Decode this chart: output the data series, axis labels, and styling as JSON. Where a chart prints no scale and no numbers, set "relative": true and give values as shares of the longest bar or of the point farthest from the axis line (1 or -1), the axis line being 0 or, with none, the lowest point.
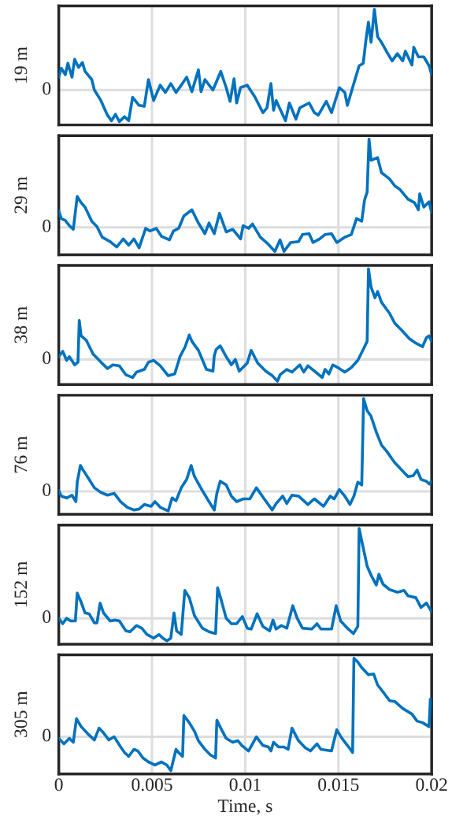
{
  "chart_data": [
    {
      "type": "line",
      "ylabel": "19 m",
      "relative": true,
      "color": "#0072bd",
      "xlim": [
        0,
        0.02
      ],
      "xticks": [
        0,
        0.005,
        0.01,
        0.015,
        0.02
      ],
      "ref_lines": [
        {
          "axis": "y",
          "value": 0,
          "label": "0",
          "color": "#dddddd"
        }
      ],
      "grid": "x",
      "tick_labels": "y",
      "x": [
        0,
        0.00014,
        0.00035,
        0.00049,
        0.00071,
        0.00085,
        0.00106,
        0.00127,
        0.00141,
        0.00177,
        0.00191,
        0.00226,
        0.00261,
        0.00283,
        0.00304,
        0.00325,
        0.00353,
        0.00375,
        0.00396,
        0.00431,
        0.00459,
        0.00481,
        0.00509,
        0.00544,
        0.00572,
        0.00601,
        0.00629,
        0.00657,
        0.00686,
        0.00714,
        0.00749,
        0.00763,
        0.00784,
        0.00827,
        0.00869,
        0.00898,
        0.00919,
        0.0094,
        0.00954,
        0.00975,
        0.01011,
        0.01053,
        0.01095,
        0.01117,
        0.01138,
        0.01152,
        0.01166,
        0.01216,
        0.01237,
        0.01272,
        0.01293,
        0.01343,
        0.01371,
        0.01392,
        0.01435,
        0.01463,
        0.01505,
        0.01534,
        0.01548,
        0.01576,
        0.01611,
        0.01633,
        0.01647,
        0.01661,
        0.01675,
        0.01693,
        0.0171,
        0.01731,
        0.0176,
        0.01788,
        0.01816,
        0.01845,
        0.01859,
        0.01894,
        0.01904,
        0.01929,
        0.01958,
        0.01986,
        0.02
      ],
      "values": [
        0.16,
        0.27,
        0.19,
        0.33,
        0.16,
        0.38,
        0.28,
        0.34,
        0.23,
        0.13,
        0,
        -0.13,
        -0.31,
        -0.38,
        -0.3,
        -0.39,
        -0.33,
        -0.38,
        -0.09,
        -0.19,
        -0.2,
        0.13,
        -0.13,
        0.06,
        -0.03,
        0.08,
        -0.03,
        0.06,
        0.16,
        -0.02,
        0.25,
        -0.02,
        0.13,
        0,
        0.23,
        0.03,
        -0.14,
        0.14,
        -0.16,
        0.03,
        0.06,
        -0.09,
        -0.28,
        -0.22,
        0.08,
        -0.25,
        -0.13,
        -0.38,
        -0.16,
        -0.36,
        -0.22,
        -0.16,
        -0.28,
        -0.31,
        -0.14,
        -0.28,
        0.03,
        -0.03,
        -0.19,
        0.03,
        0.3,
        0.33,
        0.61,
        0.84,
        0.59,
        1,
        0.66,
        0.59,
        0.47,
        0.36,
        0.45,
        0.36,
        0.48,
        0.31,
        0.53,
        0.41,
        0.41,
        0.3,
        0.19
      ]
    },
    {
      "type": "line",
      "ylabel": "29 m",
      "relative": true,
      "color": "#0072bd",
      "xlim": [
        0,
        0.02
      ],
      "xticks": [
        0,
        0.005,
        0.01,
        0.015,
        0.02
      ],
      "ref_lines": [
        {
          "axis": "y",
          "value": 0,
          "label": "0",
          "color": "#dddddd"
        }
      ],
      "grid": "x",
      "tick_labels": "y",
      "x": [
        0,
        0.00014,
        0.00035,
        0.00057,
        0.00078,
        0.00099,
        0.0012,
        0.00141,
        0.00177,
        0.00205,
        0.00233,
        0.00276,
        0.00311,
        0.00346,
        0.00375,
        0.00403,
        0.00431,
        0.00466,
        0.00488,
        0.00523,
        0.00551,
        0.00594,
        0.00615,
        0.00643,
        0.00671,
        0.00714,
        0.00749,
        0.00784,
        0.00806,
        0.00834,
        0.00862,
        0.00898,
        0.00933,
        0.00975,
        0.00989,
        0.01018,
        0.01039,
        0.01081,
        0.01124,
        0.01159,
        0.01187,
        0.01208,
        0.01244,
        0.01286,
        0.01307,
        0.01343,
        0.01364,
        0.01399,
        0.01428,
        0.01463,
        0.01491,
        0.01534,
        0.01569,
        0.01597,
        0.01625,
        0.0164,
        0.01654,
        0.01664,
        0.01675,
        0.0171,
        0.01731,
        0.01774,
        0.01802,
        0.0183,
        0.01873,
        0.01908,
        0.01929,
        0.01936,
        0.01958,
        0.01986,
        0.02
      ],
      "values": [
        0.19,
        0.1,
        0.08,
        0.02,
        -0.02,
        0.35,
        0.28,
        0.23,
        0.07,
        0.01,
        -0.11,
        -0.16,
        -0.22,
        -0.13,
        -0.2,
        -0.13,
        -0.23,
        -0.01,
        -0.04,
        -0.01,
        -0.1,
        -0.14,
        -0.04,
        -0.01,
        0.13,
        0.2,
        0.05,
        -0.07,
        0.05,
        -0.07,
        0.16,
        -0.05,
        -0.02,
        -0.13,
        0.02,
        -0.01,
        0.04,
        -0.11,
        -0.19,
        -0.27,
        -0.14,
        -0.27,
        -0.17,
        -0.16,
        -0.08,
        -0.07,
        -0.17,
        -0.13,
        -0.08,
        -0.07,
        -0.17,
        -0.11,
        -0.08,
        0.1,
        0.07,
        0.31,
        0.4,
        1,
        0.76,
        0.79,
        0.62,
        0.55,
        0.47,
        0.43,
        0.32,
        0.28,
        0.2,
        0.38,
        0.23,
        0.29,
        0.17
      ]
    },
    {
      "type": "line",
      "ylabel": "38 m",
      "relative": true,
      "color": "#0072bd",
      "xlim": [
        0,
        0.02
      ],
      "xticks": [
        0,
        0.005,
        0.01,
        0.015,
        0.02
      ],
      "ref_lines": [
        {
          "axis": "y",
          "value": 0,
          "label": "0",
          "color": "#dddddd"
        }
      ],
      "grid": "x",
      "tick_labels": "y",
      "x": [
        0,
        0.00021,
        0.00042,
        0.00057,
        0.00085,
        0.00103,
        0.0011,
        0.0012,
        0.00148,
        0.00184,
        0.00226,
        0.00261,
        0.0029,
        0.00325,
        0.0036,
        0.00396,
        0.00417,
        0.00459,
        0.00481,
        0.00509,
        0.00544,
        0.00587,
        0.00622,
        0.0065,
        0.00678,
        0.007,
        0.00714,
        0.00749,
        0.00792,
        0.00827,
        0.00834,
        0.00844,
        0.00866,
        0.00898,
        0.00926,
        0.00947,
        0.00968,
        0.01011,
        0.01032,
        0.01067,
        0.0111,
        0.01145,
        0.01173,
        0.01187,
        0.01223,
        0.01251,
        0.01293,
        0.01314,
        0.01336,
        0.01378,
        0.01413,
        0.01428,
        0.01449,
        0.0147,
        0.01505,
        0.01534,
        0.01569,
        0.01604,
        0.01633,
        0.01654,
        0.01661,
        0.01675,
        0.01696,
        0.0171,
        0.01731,
        0.01774,
        0.01802,
        0.01845,
        0.0188,
        0.01915,
        0.01951,
        0.01972,
        0.01986,
        0.02
      ],
      "values": [
        0.03,
        0.09,
        -0.01,
        0.03,
        -0.06,
        -0.03,
        0.43,
        0.26,
        0.21,
        0.06,
        -0.03,
        -0.1,
        -0.06,
        -0.07,
        -0.17,
        -0.2,
        -0.14,
        -0.11,
        -0.03,
        -0.01,
        -0.07,
        -0.18,
        -0.16,
        0.03,
        0.14,
        0.27,
        0.2,
        0.1,
        -0.11,
        -0.13,
        0.04,
        0.11,
        0.15,
        0.03,
        -0.06,
        0,
        -0.13,
        -0.04,
        0.1,
        -0.04,
        -0.13,
        -0.18,
        -0.24,
        -0.17,
        -0.11,
        -0.14,
        -0.06,
        -0.14,
        -0.07,
        -0.14,
        -0.2,
        -0.11,
        -0.16,
        -0.06,
        -0.1,
        -0.14,
        -0.09,
        -0.01,
        0.11,
        0.2,
        1,
        0.8,
        0.68,
        0.75,
        0.63,
        0.51,
        0.4,
        0.31,
        0.23,
        0.18,
        0.14,
        0.24,
        0.26,
        0.2
      ]
    },
    {
      "type": "line",
      "ylabel": "76 m",
      "relative": true,
      "color": "#0072bd",
      "xlim": [
        0,
        0.02
      ],
      "xticks": [
        0,
        0.005,
        0.01,
        0.015,
        0.02
      ],
      "ref_lines": [
        {
          "axis": "y",
          "value": 0,
          "label": "0",
          "color": "#dddddd"
        }
      ],
      "grid": "x",
      "tick_labels": "y",
      "x": [
        0,
        0.00014,
        0.00042,
        0.00071,
        0.00092,
        0.00099,
        0.00116,
        0.00134,
        0.00163,
        0.00191,
        0.00226,
        0.00261,
        0.00297,
        0.00332,
        0.00367,
        0.00403,
        0.00431,
        0.00459,
        0.00495,
        0.00516,
        0.00544,
        0.00587,
        0.00608,
        0.00629,
        0.00657,
        0.00686,
        0.0071,
        0.00728,
        0.0077,
        0.00806,
        0.00834,
        0.00848,
        0.00866,
        0.00898,
        0.00926,
        0.00954,
        0.00989,
        0.01025,
        0.0106,
        0.01102,
        0.01145,
        0.01166,
        0.01201,
        0.01223,
        0.01251,
        0.01286,
        0.01336,
        0.01371,
        0.0142,
        0.01456,
        0.01477,
        0.01505,
        0.01534,
        0.01562,
        0.01583,
        0.01604,
        0.01625,
        0.01635,
        0.01654,
        0.01675,
        0.01703,
        0.01731,
        0.0176,
        0.01802,
        0.01845,
        0.01873,
        0.01901,
        0.01922,
        0.01943,
        0.01972,
        0.01986,
        0.02
      ],
      "values": [
        0.01,
        -0.05,
        -0.07,
        -0.04,
        -0.11,
        0.1,
        0.28,
        0.22,
        0.13,
        0.04,
        -0.01,
        -0.04,
        -0.02,
        -0.11,
        -0.17,
        -0.2,
        -0.19,
        -0.14,
        -0.16,
        -0.11,
        -0.17,
        -0.21,
        -0.07,
        -0.1,
        0.04,
        0.13,
        0.28,
        0.16,
        0.01,
        -0.11,
        -0.2,
        -0.02,
        0.11,
        0.07,
        -0.05,
        -0.11,
        -0.08,
        -0.08,
        0.04,
        -0.08,
        -0.2,
        -0.13,
        -0.05,
        -0.13,
        -0.04,
        -0.05,
        -0.14,
        -0.08,
        -0.16,
        -0.05,
        -0.08,
        0.02,
        -0.05,
        -0.14,
        -0.05,
        0.1,
        0.07,
        1,
        0.87,
        0.81,
        0.64,
        0.5,
        0.43,
        0.31,
        0.22,
        0.16,
        0.17,
        0.23,
        0.13,
        0.11,
        0.08,
        0.11
      ]
    },
    {
      "type": "line",
      "ylabel": "152 m",
      "relative": true,
      "color": "#0072bd",
      "xlim": [
        0,
        0.02
      ],
      "xticks": [
        0,
        0.005,
        0.01,
        0.015,
        0.02
      ],
      "ref_lines": [
        {
          "axis": "y",
          "value": 0,
          "label": "0",
          "color": "#dddddd"
        }
      ],
      "grid": "x",
      "tick_labels": "y",
      "x": [
        0,
        0.00021,
        0.00042,
        0.00064,
        0.00089,
        0.00099,
        0.0012,
        0.00141,
        0.00163,
        0.00191,
        0.00205,
        0.00222,
        0.0024,
        0.00276,
        0.00304,
        0.00325,
        0.0036,
        0.00382,
        0.00417,
        0.00445,
        0.00473,
        0.00509,
        0.00537,
        0.00558,
        0.0058,
        0.00601,
        0.00618,
        0.00632,
        0.00657,
        0.00676,
        0.007,
        0.00728,
        0.0077,
        0.00806,
        0.00841,
        0.00852,
        0.00869,
        0.00898,
        0.00926,
        0.00954,
        0.00985,
        0.01011,
        0.01032,
        0.01064,
        0.01095,
        0.01131,
        0.01149,
        0.01166,
        0.01194,
        0.01223,
        0.01255,
        0.01279,
        0.01307,
        0.01357,
        0.01385,
        0.01406,
        0.01463,
        0.01488,
        0.01512,
        0.01548,
        0.0158,
        0.01604,
        0.01611,
        0.01625,
        0.01654,
        0.01675,
        0.01703,
        0.01717,
        0.01739,
        0.01774,
        0.01816,
        0.01852,
        0.01873,
        0.01915,
        0.01943,
        0.01972,
        0.02
      ],
      "values": [
        0,
        -0.06,
        0,
        -0.03,
        -0.03,
        0.28,
        0.18,
        0.06,
        0.05,
        -0.05,
        -0.05,
        0.17,
        0.06,
        -0.03,
        -0.02,
        -0.03,
        -0.14,
        -0.15,
        -0.08,
        -0.11,
        -0.18,
        -0.22,
        -0.18,
        -0.22,
        -0.25,
        -0.22,
        0.06,
        -0.14,
        -0.18,
        0.31,
        0.23,
        0.03,
        -0.11,
        -0.15,
        -0.17,
        0.34,
        0.22,
        0,
        -0.06,
        -0.06,
        0.02,
        -0.11,
        -0.12,
        0.05,
        -0.09,
        -0.14,
        -0.02,
        -0.12,
        -0.08,
        -0.11,
        0.14,
        0,
        -0.11,
        -0.12,
        -0.06,
        -0.12,
        -0.12,
        0.14,
        -0.03,
        -0.11,
        -0.17,
        -0.09,
        1,
        0.86,
        0.58,
        0.48,
        0.37,
        0.49,
        0.38,
        0.32,
        0.29,
        0.31,
        0.25,
        0.23,
        0.12,
        0.17,
        0.07
      ]
    },
    {
      "type": "line",
      "ylabel": "305 m",
      "xlabel": "Time, s",
      "relative": true,
      "color": "#0072bd",
      "xlim": [
        0,
        0.02
      ],
      "xticks": [
        0,
        0.005,
        0.01,
        0.015,
        0.02
      ],
      "ref_lines": [
        {
          "axis": "y",
          "value": 0,
          "label": "0",
          "color": "#dddddd"
        }
      ],
      "grid": "x",
      "x": [
        0,
        0.00028,
        0.00057,
        0.00078,
        0.00095,
        0.0012,
        0.00155,
        0.00191,
        0.00216,
        0.0024,
        0.00269,
        0.00297,
        0.00332,
        0.00353,
        0.00375,
        0.00403,
        0.00424,
        0.00452,
        0.00481,
        0.00516,
        0.00551,
        0.0058,
        0.00601,
        0.00629,
        0.00643,
        0.00664,
        0.00671,
        0.007,
        0.00728,
        0.00749,
        0.00784,
        0.00813,
        0.00841,
        0.00848,
        0.00869,
        0.00898,
        0.00933,
        0.00961,
        0.00982,
        0.01018,
        0.0106,
        0.01095,
        0.01124,
        0.01138,
        0.01152,
        0.0118,
        0.01208,
        0.0123,
        0.01251,
        0.01286,
        0.01322,
        0.0135,
        0.01385,
        0.01406,
        0.01463,
        0.01491,
        0.01519,
        0.01555,
        0.01576,
        0.01583,
        0.01604,
        0.01625,
        0.01661,
        0.01689,
        0.0171,
        0.01746,
        0.01774,
        0.01802,
        0.01845,
        0.01894,
        0.01922,
        0.01951,
        0.01986,
        0.01993
      ],
      "values": [
        -0.02,
        -0.09,
        -0.02,
        -0.07,
        0.23,
        0.13,
        0.04,
        -0.04,
        0.11,
        0.05,
        -0.04,
        0,
        -0.13,
        -0.2,
        -0.25,
        -0.16,
        -0.18,
        -0.27,
        -0.32,
        -0.36,
        -0.32,
        -0.36,
        -0.43,
        -0.16,
        -0.2,
        -0.25,
        0.27,
        0.18,
        0.07,
        -0.05,
        -0.16,
        -0.23,
        -0.27,
        0.21,
        0.11,
        -0.02,
        -0.07,
        -0.05,
        -0.11,
        -0.18,
        0,
        -0.11,
        -0.13,
        -0.18,
        -0.07,
        -0.13,
        -0.13,
        -0.16,
        0.11,
        -0.05,
        -0.14,
        -0.18,
        -0.09,
        -0.16,
        -0.18,
        0.09,
        -0.02,
        -0.13,
        -0.2,
        1,
        0.95,
        0.88,
        0.79,
        0.8,
        0.66,
        0.55,
        0.46,
        0.45,
        0.36,
        0.29,
        0.2,
        0.18,
        0.13,
        0.48
      ]
    }
  ]
}
